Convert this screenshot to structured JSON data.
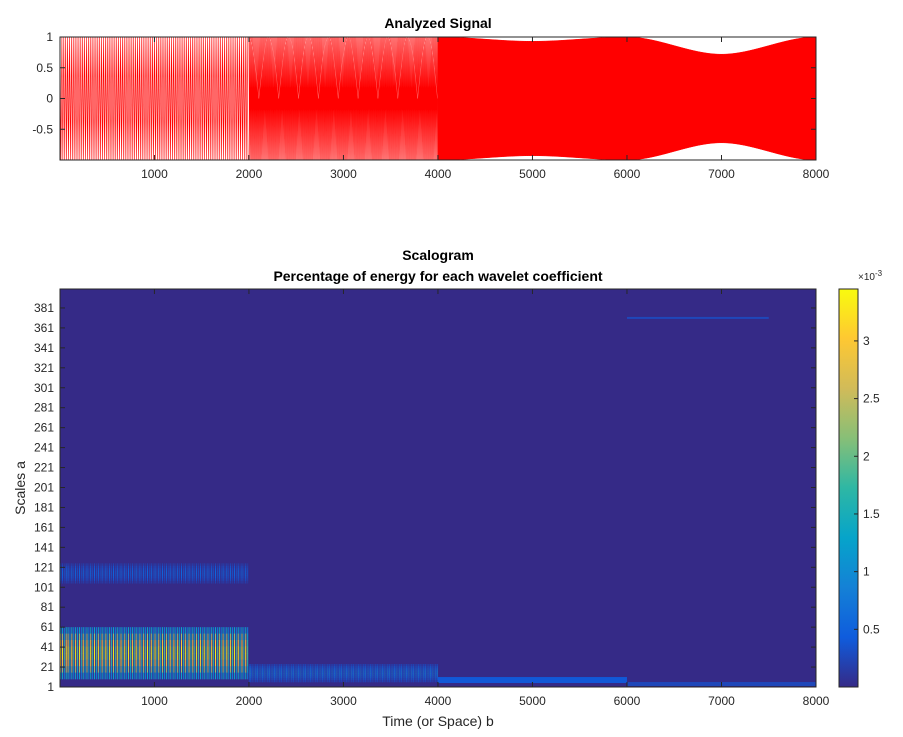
{
  "chart_data": [
    {
      "type": "line",
      "title": "Analyzed Signal",
      "xlim": [
        1,
        8000
      ],
      "ylim": [
        -1,
        1
      ],
      "x_ticks": [
        1000,
        2000,
        3000,
        4000,
        5000,
        6000,
        7000,
        8000
      ],
      "x_tick_labels": [
        "1000",
        "2000",
        "3000",
        "4000",
        "5000",
        "6000",
        "7000",
        "8000"
      ],
      "y_ticks": [
        1,
        0.5,
        0,
        -0.5
      ],
      "y_tick_labels": [
        "1",
        "0.5",
        "0",
        "-0.5"
      ],
      "line_color": "#ff0000",
      "segments": [
        {
          "x_start": 1,
          "x_end": 2000,
          "period": 20
        },
        {
          "x_start": 2000,
          "x_end": 4000,
          "period": 10
        },
        {
          "x_start": 4000,
          "x_end": 8000,
          "period": 2
        }
      ],
      "envelope_notches": [
        {
          "x": 5000,
          "min_amplitude": 0.93
        },
        {
          "x": 7000,
          "min_amplitude": 0.72
        }
      ]
    },
    {
      "type": "heatmap",
      "title": "Scalogram",
      "subtitle": "Percentage of energy for each wavelet coefficient",
      "xlabel": "Time (or Space) b",
      "ylabel": "Scales a",
      "xlim": [
        1,
        8000
      ],
      "ylim": [
        1,
        400
      ],
      "x_ticks": [
        1000,
        2000,
        3000,
        4000,
        5000,
        6000,
        7000,
        8000
      ],
      "x_tick_labels": [
        "1000",
        "2000",
        "3000",
        "4000",
        "5000",
        "6000",
        "7000",
        "8000"
      ],
      "y_ticks": [
        1,
        21,
        41,
        61,
        81,
        101,
        121,
        141,
        161,
        181,
        201,
        221,
        241,
        261,
        281,
        301,
        321,
        341,
        361,
        381
      ],
      "y_tick_labels": [
        "1",
        "21",
        "41",
        "61",
        "81",
        "101",
        "121",
        "141",
        "161",
        "181",
        "201",
        "221",
        "241",
        "261",
        "281",
        "301",
        "321",
        "341",
        "361",
        "381"
      ],
      "colormap": "parula",
      "background_color": "#352a87",
      "colorbar": {
        "exponent_label": "×10",
        "exponent": "-3",
        "ticks": [
          0.5,
          1,
          1.5,
          2,
          2.5,
          3
        ],
        "tick_labels": [
          "0.5",
          "1",
          "1.5",
          "2",
          "2.5",
          "3"
        ],
        "range": [
          0.0,
          3.45
        ]
      },
      "energy_bands": [
        {
          "x_start": 1,
          "x_end": 2000,
          "scale_center": 35,
          "scale_halfwidth": 26,
          "peak": 3.4,
          "stripe_period": 20
        },
        {
          "x_start": 1,
          "x_end": 2000,
          "scale_center": 115,
          "scale_halfwidth": 10,
          "peak": 0.55,
          "stripe_period": 20
        },
        {
          "x_start": 2000,
          "x_end": 4000,
          "scale_center": 15,
          "scale_halfwidth": 9,
          "peak": 0.85,
          "stripe_period": 12
        },
        {
          "x_start": 4000,
          "x_end": 6000,
          "scale_center": 8,
          "scale_halfwidth": 3,
          "peak": 0.4,
          "stripe_period": 0
        },
        {
          "x_start": 6000,
          "x_end": 8000,
          "scale_center": 4,
          "scale_halfwidth": 2,
          "peak": 0.25,
          "stripe_period": 0
        },
        {
          "x_start": 6000,
          "x_end": 7500,
          "scale_center": 371,
          "scale_halfwidth": 1,
          "peak": 0.25,
          "stripe_period": 0
        }
      ]
    }
  ]
}
